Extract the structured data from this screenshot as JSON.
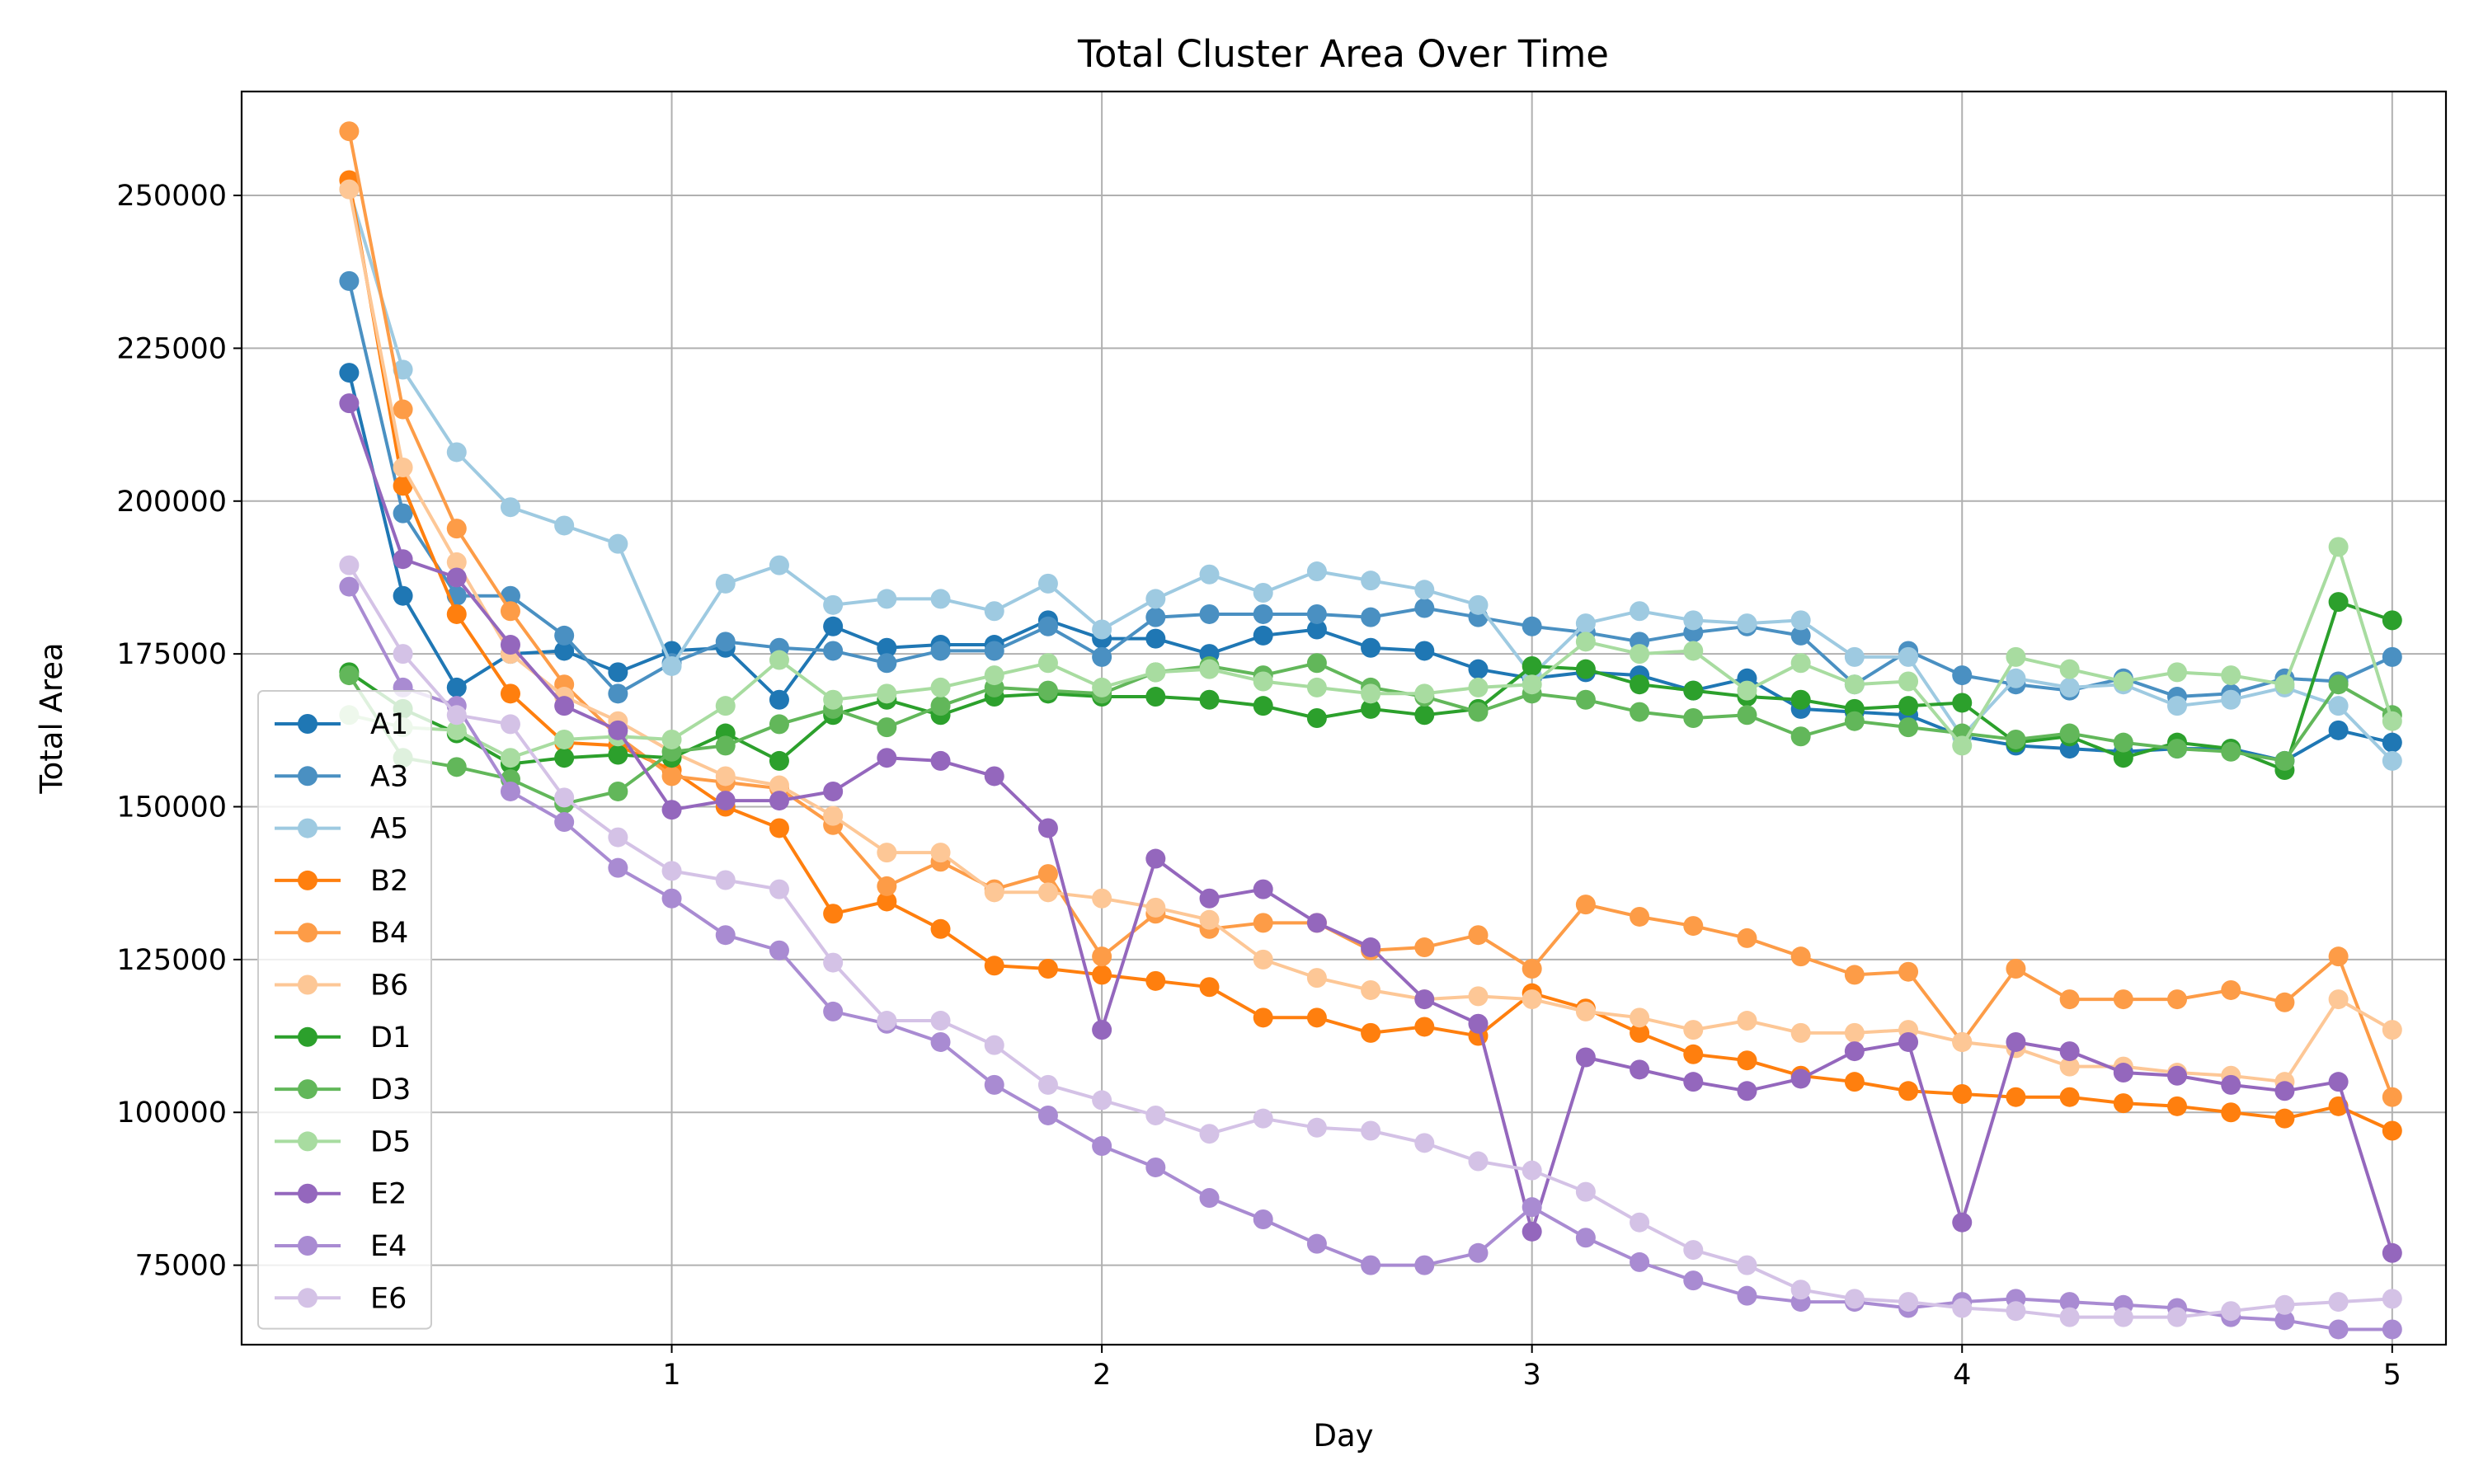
{
  "chart_data": {
    "type": "line",
    "title": "Total Cluster Area Over Time",
    "xlabel": "Day",
    "ylabel": "Total Area",
    "xlim": [
      0.0,
      5.125
    ],
    "ylim": [
      62000,
      267000
    ],
    "x_ticks": [
      1,
      2,
      3,
      4,
      5
    ],
    "y_ticks": [
      75000,
      100000,
      125000,
      150000,
      175000,
      200000,
      225000,
      250000
    ],
    "grid": true,
    "legend_position": "center-left",
    "x": [
      0.25,
      0.375,
      0.5,
      0.625,
      0.75,
      0.875,
      1.0,
      1.125,
      1.25,
      1.375,
      1.5,
      1.625,
      1.75,
      1.875,
      2.0,
      2.125,
      2.25,
      2.375,
      2.5,
      2.625,
      2.75,
      2.875,
      3.0,
      3.125,
      3.25,
      3.375,
      3.5,
      3.625,
      3.75,
      3.875,
      4.0,
      4.125,
      4.25,
      4.375,
      4.5,
      4.625,
      4.75,
      4.875,
      5.0
    ],
    "series": [
      {
        "name": "A1",
        "color": "#1f77b4",
        "values": [
          221000,
          184500,
          169500,
          175000,
          175500,
          172000,
          175500,
          176000,
          167500,
          179500,
          176000,
          176500,
          176500,
          180500,
          177500,
          177500,
          175000,
          178000,
          179000,
          176000,
          175500,
          172500,
          171000,
          172000,
          171500,
          169000,
          171000,
          166000,
          165500,
          165000,
          161500,
          160000,
          159500,
          159000,
          159500,
          159500,
          157500,
          162500,
          160500
        ]
      },
      {
        "name": "A3",
        "color": "#4a90c2",
        "values": [
          236000,
          198000,
          184500,
          184500,
          178000,
          168500,
          173500,
          177000,
          176000,
          175500,
          173500,
          175500,
          175500,
          179500,
          174500,
          181000,
          181500,
          181500,
          181500,
          181000,
          182500,
          181000,
          179500,
          178500,
          177000,
          178500,
          179500,
          178000,
          170000,
          175500,
          171500,
          170000,
          169000,
          171000,
          168000,
          168500,
          171000,
          170500,
          174500
        ]
      },
      {
        "name": "A5",
        "color": "#9ecae1",
        "values": [
          251000,
          221500,
          208000,
          199000,
          196000,
          193000,
          173000,
          186500,
          189500,
          183000,
          184000,
          184000,
          182000,
          186500,
          179000,
          184000,
          188000,
          185000,
          188500,
          187000,
          185500,
          183000,
          171500,
          180000,
          182000,
          180500,
          180000,
          180500,
          174500,
          174500,
          161500,
          171000,
          169500,
          170000,
          166500,
          167500,
          169500,
          166500,
          157500
        ]
      },
      {
        "name": "B2",
        "color": "#ff7f0e",
        "values": [
          252500,
          202500,
          181500,
          168500,
          160500,
          160000,
          156000,
          150000,
          146500,
          132500,
          134500,
          130000,
          124000,
          123500,
          122500,
          121500,
          120500,
          115500,
          115500,
          113000,
          114000,
          112500,
          119500,
          117000,
          113000,
          109500,
          108500,
          106000,
          105000,
          103500,
          103000,
          102500,
          102500,
          101500,
          101000,
          100000,
          99000,
          101000,
          97000
        ]
      },
      {
        "name": "B4",
        "color": "#fd9c47",
        "values": [
          260500,
          215000,
          195500,
          182000,
          170000,
          161500,
          155000,
          154000,
          153000,
          147000,
          137000,
          141000,
          136500,
          139000,
          125500,
          132500,
          130000,
          131000,
          131000,
          126500,
          127000,
          129000,
          123500,
          134000,
          132000,
          130500,
          128500,
          125500,
          122500,
          123000,
          111500,
          123500,
          118500,
          118500,
          118500,
          120000,
          118000,
          125500,
          102500
        ]
      },
      {
        "name": "B6",
        "color": "#fdc796",
        "values": [
          251000,
          205500,
          190000,
          175000,
          168000,
          164000,
          159000,
          155000,
          153500,
          148500,
          142500,
          142500,
          136000,
          136000,
          135000,
          133500,
          131500,
          125000,
          122000,
          120000,
          118500,
          119000,
          118500,
          116500,
          115500,
          113500,
          115000,
          113000,
          113000,
          113500,
          111500,
          110500,
          107500,
          107500,
          106500,
          106000,
          105000,
          118500,
          113500
        ]
      },
      {
        "name": "D1",
        "color": "#2ca02c",
        "values": [
          172000,
          166000,
          162000,
          157000,
          158000,
          158500,
          158000,
          162000,
          157500,
          165000,
          167500,
          165000,
          168000,
          168500,
          168000,
          168000,
          167500,
          166500,
          164500,
          166000,
          165000,
          166000,
          173000,
          172500,
          170000,
          169000,
          168000,
          167500,
          166000,
          166500,
          167000,
          160500,
          161500,
          158000,
          160500,
          159500,
          156000,
          183500,
          180500
        ]
      },
      {
        "name": "D3",
        "color": "#62b75a",
        "values": [
          171500,
          158000,
          156500,
          154500,
          150500,
          152500,
          159000,
          160000,
          163500,
          166000,
          163000,
          166500,
          169500,
          169000,
          168500,
          172000,
          173000,
          171500,
          173500,
          169500,
          168000,
          165500,
          168500,
          167500,
          165500,
          164500,
          165000,
          161500,
          164000,
          163000,
          162000,
          161000,
          162000,
          160500,
          159500,
          159000,
          157500,
          170000,
          165000
        ]
      },
      {
        "name": "D5",
        "color": "#a8dca0",
        "values": [
          165000,
          163000,
          162500,
          158000,
          161000,
          161500,
          161000,
          166500,
          174000,
          167500,
          168500,
          169500,
          171500,
          173500,
          169500,
          172000,
          172500,
          170500,
          169500,
          168500,
          168500,
          169500,
          170000,
          177000,
          175000,
          175500,
          169000,
          173500,
          170000,
          170500,
          160000,
          174500,
          172500,
          170500,
          172000,
          171500,
          170000,
          192500,
          164000
        ]
      },
      {
        "name": "E2",
        "color": "#9467bd",
        "values": [
          216000,
          190500,
          187500,
          176500,
          166500,
          162500,
          149500,
          151000,
          151000,
          152500,
          158000,
          157500,
          155000,
          146500,
          113500,
          141500,
          135000,
          136500,
          131000,
          127000,
          118500,
          114500,
          80500,
          109000,
          107000,
          105000,
          103500,
          105500,
          110000,
          111500,
          82000,
          111500,
          110000,
          106500,
          106000,
          104500,
          103500,
          105000,
          77000
        ]
      },
      {
        "name": "E4",
        "color": "#a98bd2",
        "values": [
          186000,
          169500,
          166500,
          152500,
          147500,
          140000,
          135000,
          129000,
          126500,
          116500,
          114500,
          111500,
          104500,
          99500,
          94500,
          91000,
          86000,
          82500,
          78500,
          75000,
          75000,
          77000,
          84500,
          79500,
          75500,
          72500,
          70000,
          69000,
          69000,
          68000,
          69000,
          69500,
          69000,
          68500,
          68000,
          66500,
          66000,
          64500,
          64500
        ]
      },
      {
        "name": "E6",
        "color": "#d4c2e6",
        "values": [
          189500,
          175000,
          165000,
          163500,
          151500,
          145000,
          139500,
          138000,
          136500,
          124500,
          115000,
          115000,
          111000,
          104500,
          102000,
          99500,
          96500,
          99000,
          97500,
          97000,
          95000,
          92000,
          90500,
          87000,
          82000,
          77500,
          75000,
          71000,
          69500,
          69000,
          68000,
          67500,
          66500,
          66500,
          66500,
          67500,
          68500,
          69000,
          69500
        ]
      }
    ]
  }
}
